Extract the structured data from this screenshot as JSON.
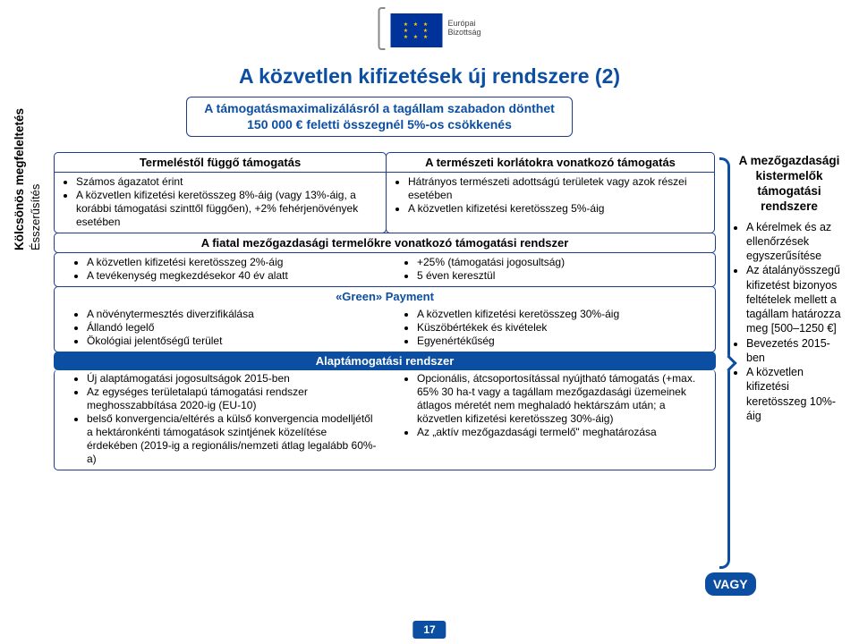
{
  "colors": {
    "title": "#0b4ea2",
    "border": "#1f3b8a",
    "blueBar": "#0b4ea2",
    "white": "#ffffff",
    "euFlagBg": "#003399",
    "euFlagStars": "#ffcc00"
  },
  "logo": {
    "line1": "Európai",
    "line2": "Bizottság"
  },
  "title": "A közvetlen kifizetések új rendszere (2)",
  "subtitle": "A támogatásmaximalizálásról a tagállam szabadon dönthet 150 000 € feletti összegnél 5%-os csökkenés",
  "sidebar": {
    "bold": "Kölcsönös megfeleltetés",
    "light": "Ésszerűsítés"
  },
  "box1": {
    "head": "Termeléstől függő támogatás",
    "items": [
      "Számos ágazatot érint",
      "A közvetlen kifizetési keretösszeg 8%-áig (vagy 13%-áig, a korábbi támogatási szinttől függően), +2% fehérjenövények esetében"
    ]
  },
  "box2": {
    "head": "A természeti korlátokra vonatkozó támogatás",
    "items": [
      "Hátrányos természeti adottságú területek vagy azok részei esetében",
      "A közvetlen kifizetési keretösszeg 5%-áig"
    ]
  },
  "row3head": "A fiatal mezőgazdasági termelőkre vonatkozó támogatási rendszer",
  "row3left": [
    "A közvetlen kifizetési keretösszeg 2%-áig",
    "A tevékenység megkezdésekor 40 év alatt"
  ],
  "row3right": [
    "+25% (támogatási jogosultság)",
    "5 éven keresztül"
  ],
  "greenHead": "«Green» Payment",
  "greenLeft": [
    "A növénytermesztés diverzifikálása",
    "Állandó legelő",
    "Ökológiai jelentőségű terület"
  ],
  "greenRight": [
    "A közvetlen kifizetési keretösszeg 30%-áig",
    "Küszöbértékek és kivételek",
    "Egyenértékűség"
  ],
  "blueBar": "Alaptámogatási rendszer",
  "bottomLeft": [
    "Új alaptámogatási jogosultságok 2015-ben",
    "Az egységes területalapú támogatási rendszer meghosszabbítása 2020-ig (EU-10)",
    "belső konvergencia/eltérés a külső konvergencia modelljétől a hektáronkénti támogatások szintjének közelítése érdekében (2019-ig a regionális/nemzeti átlag legalább 60%-a)"
  ],
  "bottomRight": [
    "Opcionális, átcsoportosítással nyújtható támogatás (+max. 65% 30 ha-t vagy a tagállam mezőgazdasági üzemeinek átlagos méretét nem meghaladó hektárszám után; a közvetlen kifizetési keretösszeg 30%-áig)",
    "Az „aktív mezőgazdasági termelő\" meghatározása"
  ],
  "rightPanel": {
    "head": "A mezőgazdasági kistermelők támogatási rendszere",
    "items": [
      "A kérelmek és az ellenőrzések egyszerűsítése",
      "Az átalányösszegű kifizetést bizonyos feltételek mellett a tagállam határozza meg [500–1250 €]",
      "Bevezetés 2015-ben",
      "A közvetlen kifizetési keretösszeg 10%-áig"
    ]
  },
  "vagy": "VAGY",
  "pageNumber": "17"
}
